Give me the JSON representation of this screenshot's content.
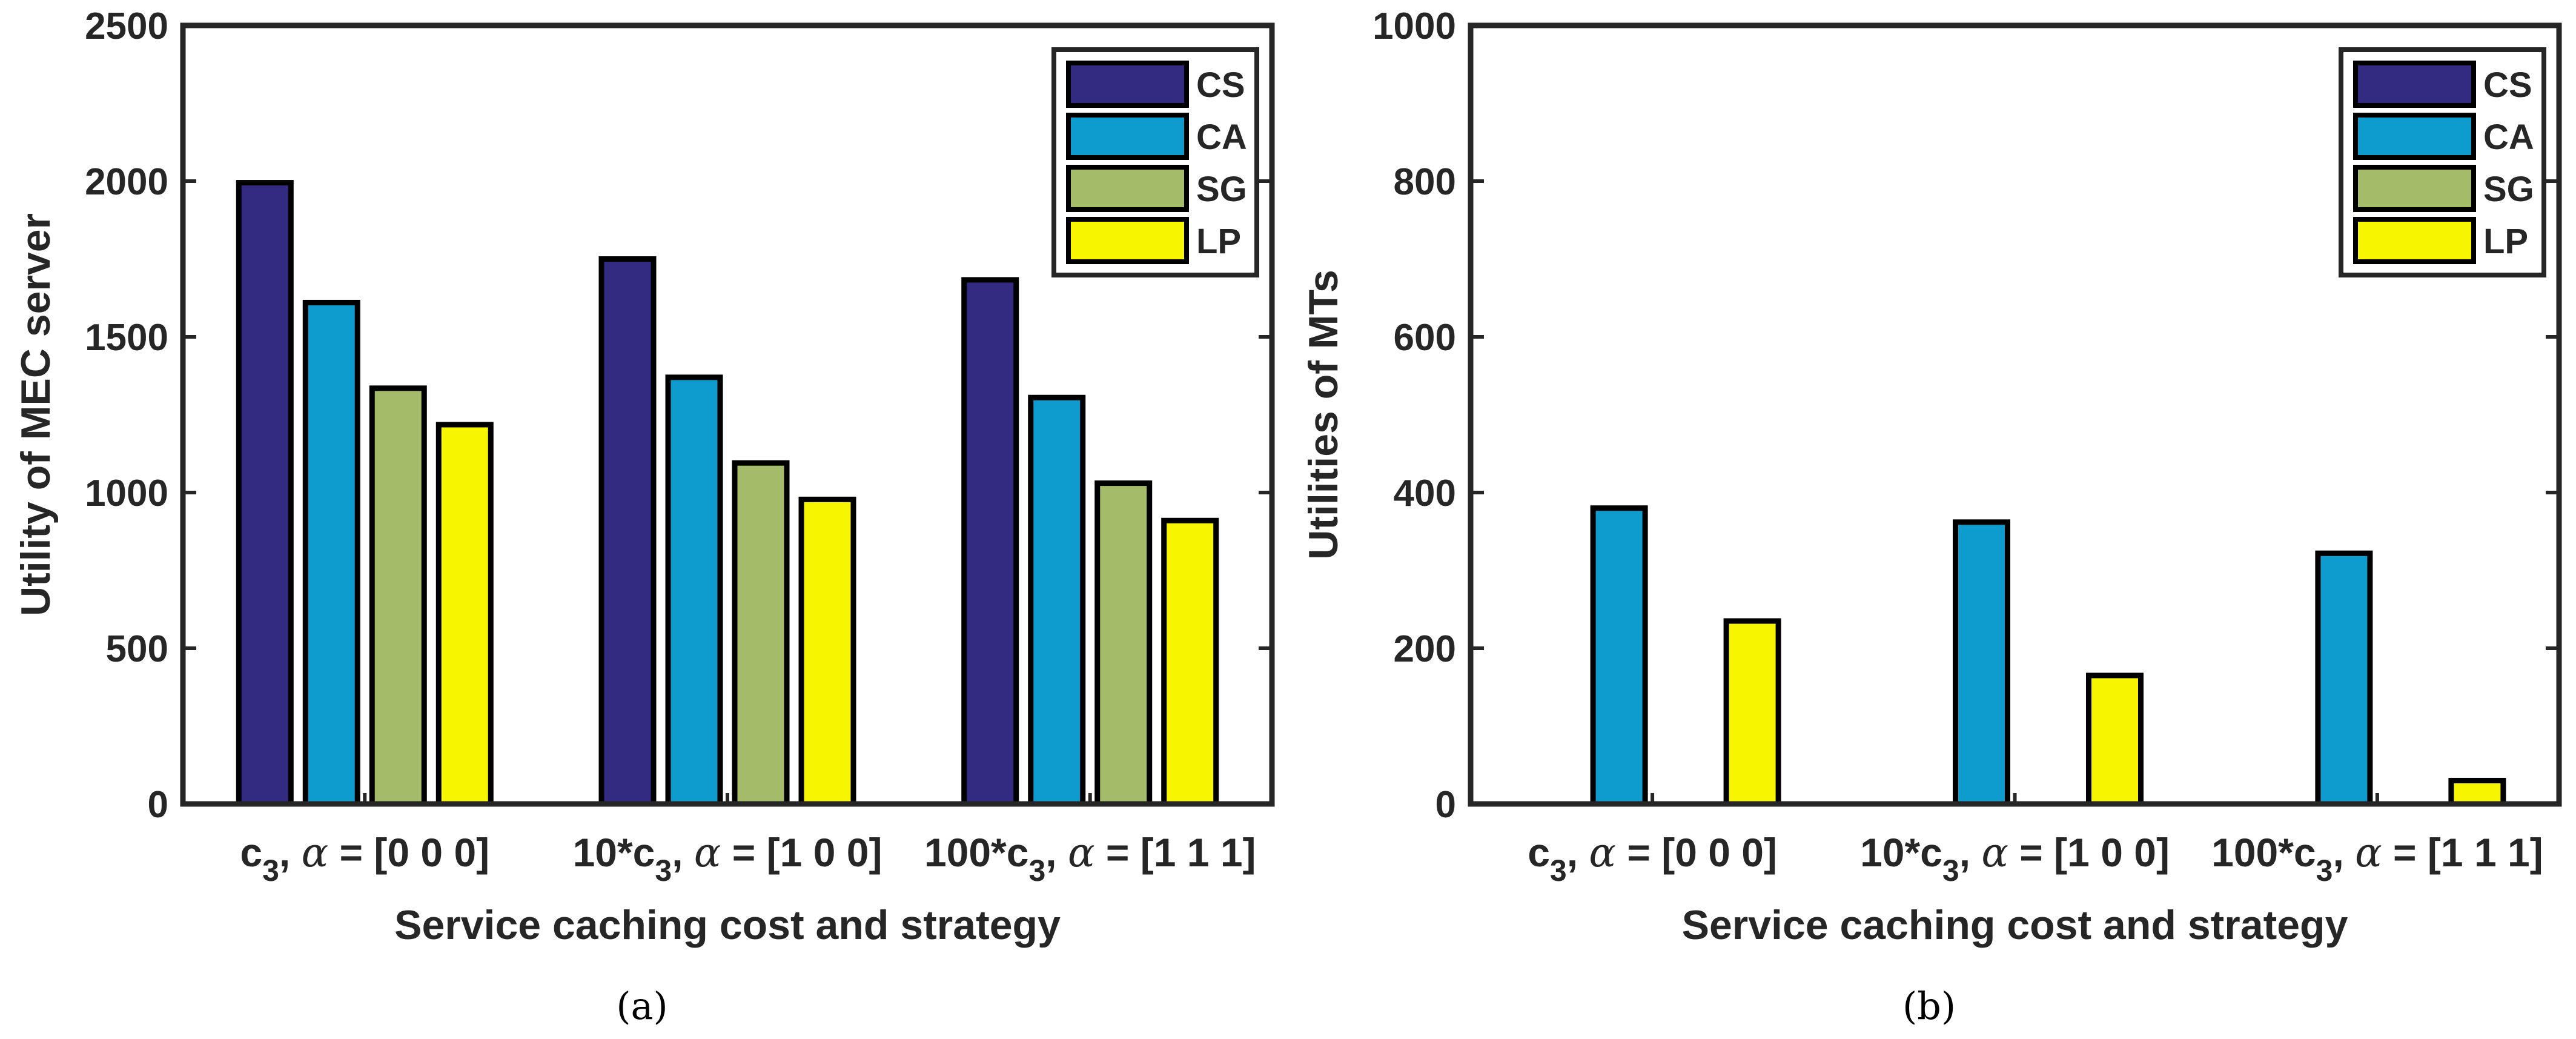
{
  "colors": {
    "CS": "#332a82",
    "CA": "#0e9ccf",
    "SG": "#a4bb69",
    "LP": "#f8f500",
    "axis": "#262626",
    "bar_edge": "#000000"
  },
  "chart_data": [
    {
      "type": "bar",
      "panel": "(a)",
      "title": "",
      "xlabel": "Service caching cost and strategy",
      "ylabel": "Utility of MEC server",
      "ylim": [
        0,
        2500
      ],
      "yticks": [
        "0",
        "500",
        "1000",
        "1500",
        "2000",
        "2500"
      ],
      "categories": [
        {
          "cost": "c",
          "cost_sub": "3",
          "alpha_sym": "α",
          "strategy": " = [0 0 0]"
        },
        {
          "cost": "10*c",
          "cost_sub": "3",
          "alpha_sym": "α",
          "strategy": " = [1 0 0]"
        },
        {
          "cost": "100*c",
          "cost_sub": "3",
          "alpha_sym": "α",
          "strategy": " = [1 1 1]"
        }
      ],
      "series": [
        {
          "name": "CS",
          "values": [
            1995,
            1750,
            1683
          ]
        },
        {
          "name": "CA",
          "values": [
            1610,
            1370,
            1305
          ]
        },
        {
          "name": "SG",
          "values": [
            1335,
            1095,
            1030
          ]
        },
        {
          "name": "LP",
          "values": [
            1218,
            978,
            910
          ]
        }
      ],
      "legend": "top-right",
      "grid": false
    },
    {
      "type": "bar",
      "panel": "(b)",
      "title": "",
      "xlabel": "Service caching cost and strategy",
      "ylabel": "Utilities of MTs",
      "ylim": [
        0,
        1000
      ],
      "yticks": [
        "0",
        "200",
        "400",
        "600",
        "800",
        "1000"
      ],
      "categories": [
        {
          "cost": "c",
          "cost_sub": "3",
          "alpha_sym": "α",
          "strategy": " = [0 0 0]"
        },
        {
          "cost": "10*c",
          "cost_sub": "3",
          "alpha_sym": "α",
          "strategy": " = [1 0 0]"
        },
        {
          "cost": "100*c",
          "cost_sub": "3",
          "alpha_sym": "α",
          "strategy": " = [1 1 1]"
        }
      ],
      "series": [
        {
          "name": "CS",
          "values": [
            0,
            0,
            0
          ]
        },
        {
          "name": "CA",
          "values": [
            380,
            362,
            322
          ]
        },
        {
          "name": "SG",
          "values": [
            0,
            0,
            0
          ]
        },
        {
          "name": "LP",
          "values": [
            235,
            165,
            30
          ]
        }
      ],
      "legend": "top-right",
      "grid": false
    }
  ]
}
